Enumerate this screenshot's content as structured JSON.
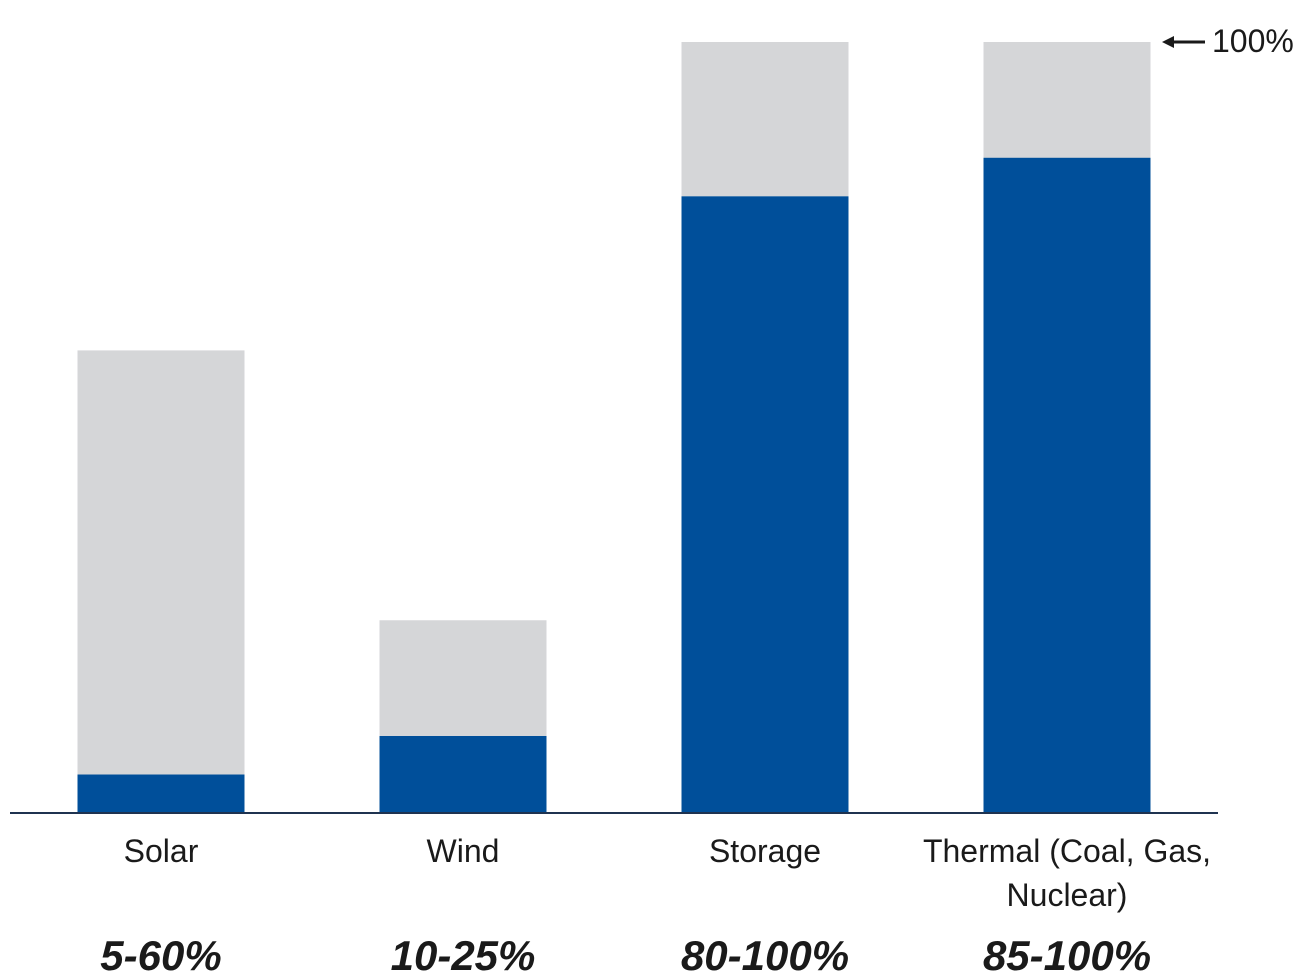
{
  "chart_data": {
    "type": "stacked_bar",
    "categories": [
      "Solar",
      "Wind",
      "Storage",
      "Thermal (Coal, Gas, Nuclear)"
    ],
    "series": [
      {
        "color": "#004f9a",
        "values": [
          5,
          10,
          80,
          85
        ]
      },
      {
        "color": "#d5d6d8",
        "values": [
          55,
          15,
          20,
          15
        ]
      }
    ],
    "range_labels": [
      "5-60%",
      "10-25%",
      "80-100%",
      "85-100%"
    ],
    "ylim": [
      0,
      100
    ],
    "annotations": [
      {
        "text": "100%",
        "value": 100
      }
    ]
  }
}
